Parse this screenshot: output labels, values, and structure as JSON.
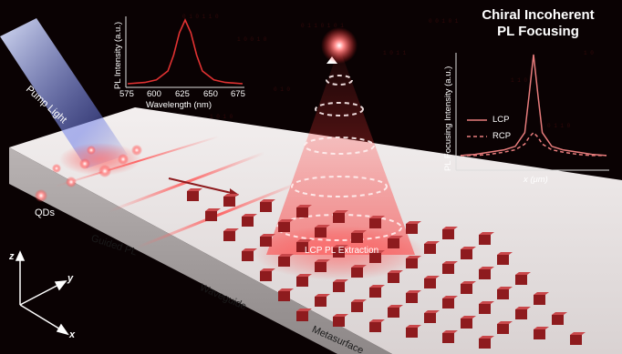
{
  "title_line1": "Chiral Incoherent",
  "title_line2": "PL Focusing",
  "pump_light": "Pump Light",
  "qds": "QDs",
  "guided_pl": "Guided PL",
  "waveguide": "Waveguide",
  "metasurface": "Metasurface",
  "lcp_extraction": "LCP PL Extraction",
  "axes": {
    "z": "z",
    "y": "y",
    "x": "x"
  },
  "colors": {
    "background": "#0a0203",
    "glow": "#ff3b3b",
    "pillar": "#8e1b1e",
    "slab": "#e9e4e4"
  },
  "chart_data": [
    {
      "type": "line",
      "xlabel": "Wavelength (nm)",
      "ylabel": "PL Intensity (a.u.)",
      "xticks": [
        "575",
        "600",
        "625",
        "650",
        "675"
      ],
      "xlim": [
        575,
        675
      ],
      "series": [
        {
          "x": [
            575,
            590,
            600,
            610,
            615,
            620,
            625,
            630,
            635,
            640,
            650,
            660,
            675
          ],
          "y": [
            0.0,
            0.02,
            0.06,
            0.2,
            0.45,
            0.8,
            1.0,
            0.8,
            0.45,
            0.2,
            0.06,
            0.02,
            0.0
          ]
        }
      ]
    },
    {
      "type": "line",
      "xlabel": "x (μm)",
      "ylabel": "PL Focusing Intensity (a.u.)",
      "legend": [
        "LCP",
        "RCP"
      ],
      "series": [
        {
          "name": "LCP",
          "x": [
            -1,
            -0.8,
            -0.6,
            -0.4,
            -0.25,
            -0.12,
            -0.06,
            0,
            0.06,
            0.12,
            0.25,
            0.4,
            0.6,
            0.8,
            1
          ],
          "y": [
            0.12,
            0.13,
            0.15,
            0.17,
            0.2,
            0.32,
            0.65,
            1.0,
            0.65,
            0.32,
            0.2,
            0.17,
            0.15,
            0.13,
            0.12
          ]
        },
        {
          "name": "RCP",
          "x": [
            -1,
            -0.8,
            -0.6,
            -0.4,
            -0.25,
            -0.12,
            -0.06,
            0,
            0.06,
            0.12,
            0.25,
            0.4,
            0.6,
            0.8,
            1
          ],
          "y": [
            0.12,
            0.12,
            0.13,
            0.15,
            0.17,
            0.22,
            0.28,
            0.32,
            0.28,
            0.22,
            0.17,
            0.15,
            0.13,
            0.12,
            0.12
          ]
        }
      ]
    }
  ]
}
